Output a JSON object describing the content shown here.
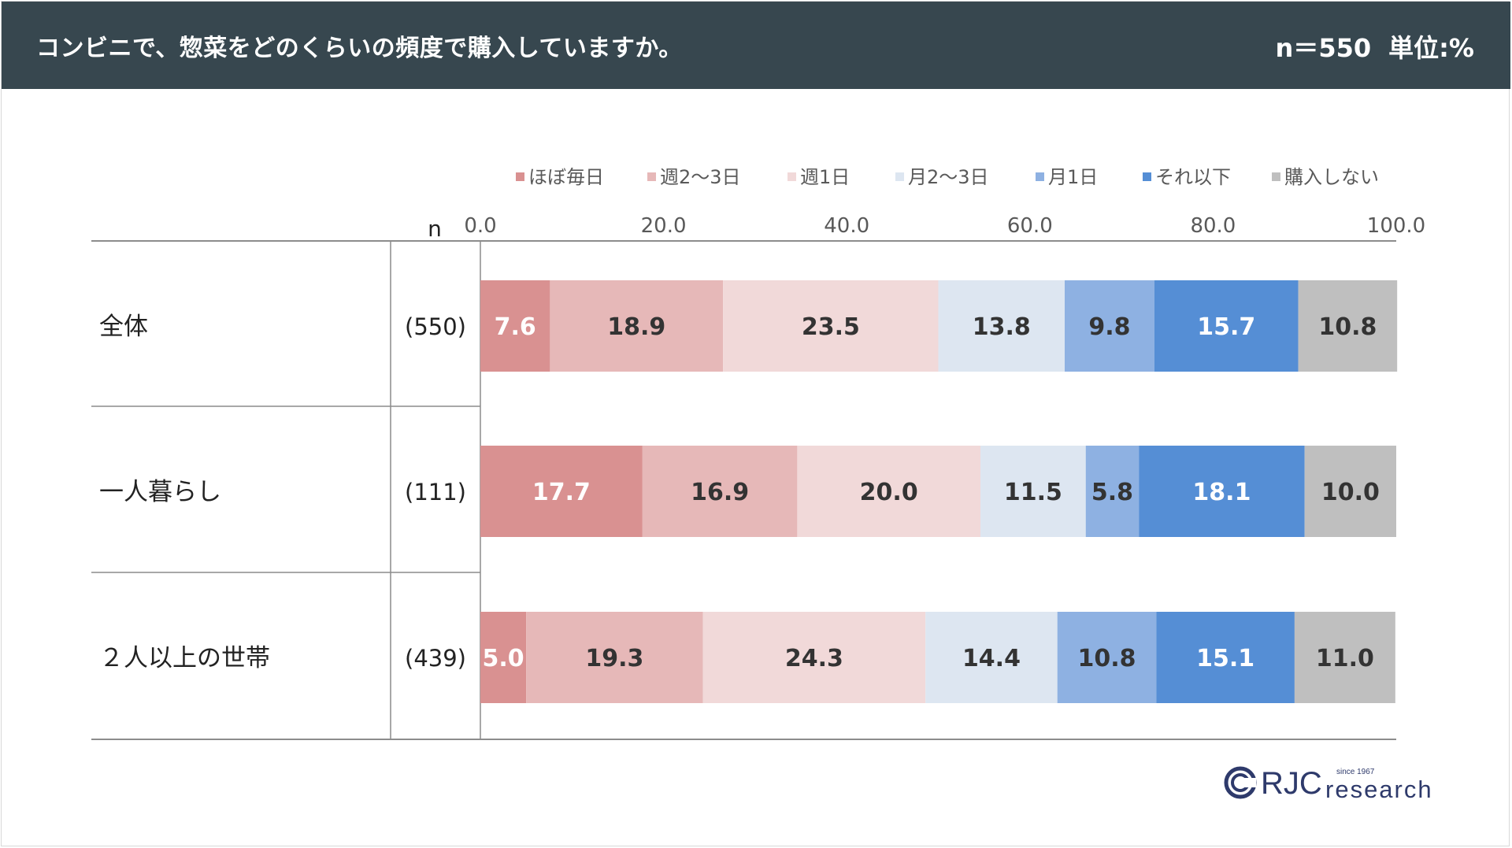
{
  "header": {
    "title": "コンビニで、惣菜をどのくらいの頻度で購入していますか。",
    "sample": "n＝550",
    "unit": "単位:%",
    "background": "#37474f"
  },
  "chart_data": {
    "type": "bar",
    "orientation": "horizontal",
    "stacked": true,
    "title": "コンビニで、惣菜をどのくらいの頻度で購入していますか。",
    "xlim": [
      0,
      100
    ],
    "x_ticks": [
      "0.0",
      "20.0",
      "40.0",
      "60.0",
      "80.0",
      "100.0"
    ],
    "n_header": "n",
    "legend_position": "top",
    "categories": [
      "全体",
      "一人暮らし",
      "２人以上の世帯"
    ],
    "n_values": [
      "(550)",
      "(111)",
      "(439)"
    ],
    "series": [
      {
        "name": "ほぼ毎日",
        "color": "#d99191",
        "values": [
          7.6,
          17.7,
          5.0
        ]
      },
      {
        "name": "週2～3日",
        "color": "#e6b8b8",
        "values": [
          18.9,
          16.9,
          19.3
        ]
      },
      {
        "name": "週1日",
        "color": "#f1d9d9",
        "values": [
          23.5,
          20.0,
          24.3
        ]
      },
      {
        "name": "月2～3日",
        "color": "#dde6f1",
        "values": [
          13.8,
          11.5,
          14.4
        ]
      },
      {
        "name": "月1日",
        "color": "#8eb1e2",
        "values": [
          9.8,
          5.8,
          10.8
        ]
      },
      {
        "name": "それ以下",
        "color": "#558ed5",
        "values": [
          15.7,
          18.1,
          15.1
        ]
      },
      {
        "name": "購入しない",
        "color": "#bfbfbf",
        "values": [
          10.8,
          10.0,
          11.0
        ]
      }
    ],
    "label_colors": {
      "light": "#ffffff",
      "dark": "#333333"
    }
  },
  "logo": {
    "brand": "RJC",
    "word": "research",
    "since": "since 1967",
    "color": "#2e3a6b"
  }
}
